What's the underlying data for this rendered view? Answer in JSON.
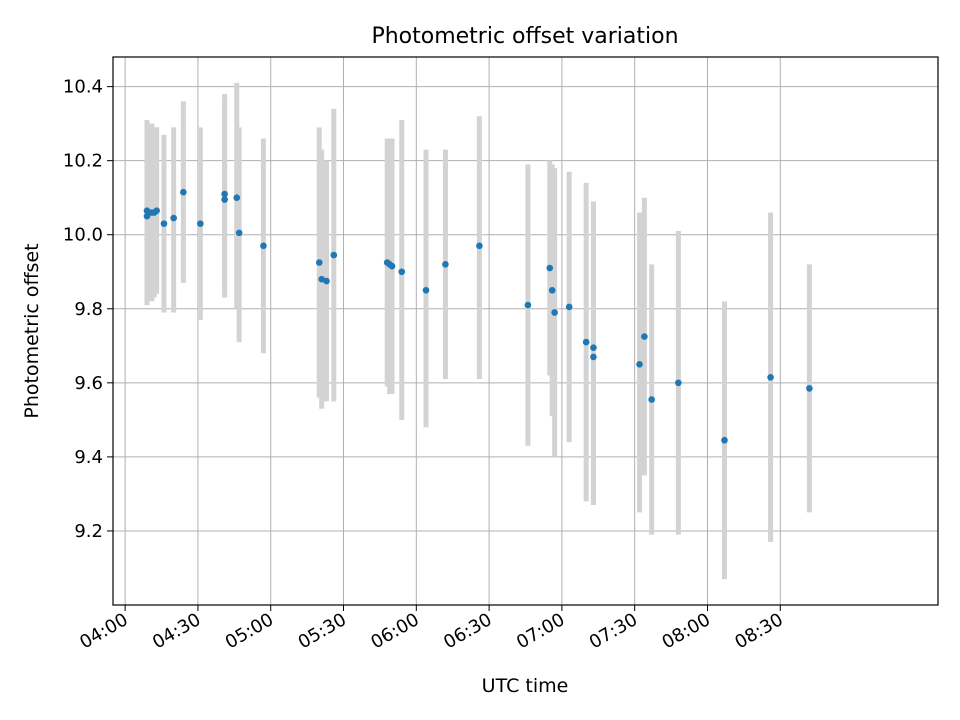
{
  "chart_data": {
    "type": "scatter",
    "title": "Photometric offset variation",
    "xlabel": "UTC time",
    "ylabel": "Photometric offset",
    "x_unit": "time (HH:MM UTC)",
    "xlim": [
      "03:55",
      "09:35"
    ],
    "ylim": [
      9.0,
      10.48
    ],
    "grid": true,
    "legend": "none",
    "x_ticks": [
      "04:00",
      "04:30",
      "05:00",
      "05:30",
      "06:00",
      "06:30",
      "07:00",
      "07:30",
      "08:00",
      "08:30"
    ],
    "y_ticks": [
      "9.2",
      "9.4",
      "9.6",
      "9.8",
      "10.0",
      "10.2",
      "10.4"
    ],
    "colors": {
      "marker": "#1f77b4",
      "errorbar": "#d3d3d3",
      "grid": "#b0b0b0",
      "axes": "#000000"
    },
    "points": [
      {
        "x": "04:09",
        "y": 10.05,
        "ylo": 9.82,
        "yhi": 10.28
      },
      {
        "x": "04:09",
        "y": 10.065,
        "ylo": 9.81,
        "yhi": 10.31
      },
      {
        "x": "04:11",
        "y": 10.06,
        "ylo": 9.82,
        "yhi": 10.3
      },
      {
        "x": "04:12",
        "y": 10.06,
        "ylo": 9.83,
        "yhi": 10.29
      },
      {
        "x": "04:13",
        "y": 10.065,
        "ylo": 9.84,
        "yhi": 10.29
      },
      {
        "x": "04:16",
        "y": 10.03,
        "ylo": 9.79,
        "yhi": 10.27
      },
      {
        "x": "04:20",
        "y": 10.045,
        "ylo": 9.79,
        "yhi": 10.29
      },
      {
        "x": "04:24",
        "y": 10.115,
        "ylo": 9.87,
        "yhi": 10.36
      },
      {
        "x": "04:31",
        "y": 10.03,
        "ylo": 9.77,
        "yhi": 10.29
      },
      {
        "x": "04:41",
        "y": 10.095,
        "ylo": 9.83,
        "yhi": 10.36
      },
      {
        "x": "04:41",
        "y": 10.11,
        "ylo": 9.85,
        "yhi": 10.38
      },
      {
        "x": "04:46",
        "y": 10.1,
        "ylo": 9.8,
        "yhi": 10.41
      },
      {
        "x": "04:47",
        "y": 10.005,
        "ylo": 9.71,
        "yhi": 10.29
      },
      {
        "x": "04:57",
        "y": 9.97,
        "ylo": 9.68,
        "yhi": 10.26
      },
      {
        "x": "05:20",
        "y": 9.925,
        "ylo": 9.56,
        "yhi": 10.29
      },
      {
        "x": "05:21",
        "y": 9.88,
        "ylo": 9.53,
        "yhi": 10.23
      },
      {
        "x": "05:23",
        "y": 9.875,
        "ylo": 9.55,
        "yhi": 10.2
      },
      {
        "x": "05:26",
        "y": 9.945,
        "ylo": 9.55,
        "yhi": 10.34
      },
      {
        "x": "05:48",
        "y": 9.925,
        "ylo": 9.59,
        "yhi": 10.26
      },
      {
        "x": "05:49",
        "y": 9.92,
        "ylo": 9.57,
        "yhi": 10.26
      },
      {
        "x": "05:50",
        "y": 9.915,
        "ylo": 9.57,
        "yhi": 10.26
      },
      {
        "x": "05:54",
        "y": 9.9,
        "ylo": 9.5,
        "yhi": 10.31
      },
      {
        "x": "06:04",
        "y": 9.85,
        "ylo": 9.48,
        "yhi": 10.23
      },
      {
        "x": "06:12",
        "y": 9.92,
        "ylo": 9.61,
        "yhi": 10.23
      },
      {
        "x": "06:26",
        "y": 9.97,
        "ylo": 9.61,
        "yhi": 10.32
      },
      {
        "x": "06:46",
        "y": 9.81,
        "ylo": 9.43,
        "yhi": 10.19
      },
      {
        "x": "06:55",
        "y": 9.91,
        "ylo": 9.62,
        "yhi": 10.2
      },
      {
        "x": "06:56",
        "y": 9.85,
        "ylo": 9.51,
        "yhi": 10.19
      },
      {
        "x": "06:57",
        "y": 9.79,
        "ylo": 9.4,
        "yhi": 10.18
      },
      {
        "x": "07:03",
        "y": 9.805,
        "ylo": 9.44,
        "yhi": 10.17
      },
      {
        "x": "07:10",
        "y": 9.71,
        "ylo": 9.28,
        "yhi": 10.14
      },
      {
        "x": "07:13",
        "y": 9.695,
        "ylo": 9.28,
        "yhi": 10.09
      },
      {
        "x": "07:13",
        "y": 9.67,
        "ylo": 9.27,
        "yhi": 10.08
      },
      {
        "x": "07:32",
        "y": 9.65,
        "ylo": 9.25,
        "yhi": 10.06
      },
      {
        "x": "07:34",
        "y": 9.725,
        "ylo": 9.35,
        "yhi": 10.1
      },
      {
        "x": "07:37",
        "y": 9.555,
        "ylo": 9.19,
        "yhi": 9.92
      },
      {
        "x": "07:48",
        "y": 9.6,
        "ylo": 9.19,
        "yhi": 10.01
      },
      {
        "x": "08:07",
        "y": 9.445,
        "ylo": 9.07,
        "yhi": 9.82
      },
      {
        "x": "08:26",
        "y": 9.615,
        "ylo": 9.17,
        "yhi": 10.06
      },
      {
        "x": "08:42",
        "y": 9.585,
        "ylo": 9.25,
        "yhi": 9.92
      }
    ]
  }
}
